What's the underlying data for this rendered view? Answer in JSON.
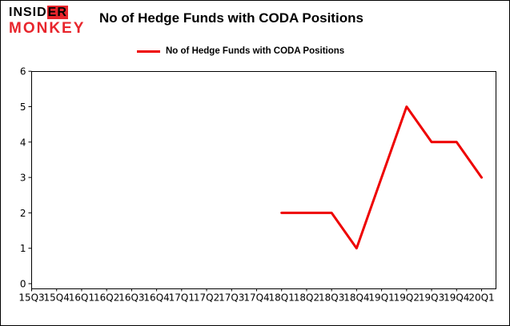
{
  "logo": {
    "line1_black": "INSID",
    "line1_red": "ER",
    "line2": "MONKEY"
  },
  "header": {
    "title": "No of Hedge Funds with CODA Positions"
  },
  "legend": {
    "label": "No of Hedge Funds with CODA Positions"
  },
  "colors": {
    "line": "#ee0000",
    "logo_red": "#e8252c",
    "axis": "#000000",
    "background": "#ffffff"
  },
  "chart_data": {
    "type": "line",
    "title": "No of Hedge Funds with CODA Positions",
    "xlabel": "",
    "ylabel": "",
    "ylim": [
      0,
      6
    ],
    "yticks": [
      0,
      1,
      2,
      3,
      4,
      5,
      6
    ],
    "grid": false,
    "legend_position": "top-left",
    "categories": [
      "15Q3",
      "15Q4",
      "16Q1",
      "16Q2",
      "16Q3",
      "16Q4",
      "17Q1",
      "17Q2",
      "17Q3",
      "17Q4",
      "18Q1",
      "18Q2",
      "18Q3",
      "18Q4",
      "19Q1",
      "19Q2",
      "19Q3",
      "19Q4",
      "20Q1"
    ],
    "series": [
      {
        "name": "No of Hedge Funds with CODA Positions",
        "color": "#ee0000",
        "values": [
          null,
          null,
          null,
          null,
          null,
          null,
          null,
          null,
          null,
          null,
          2,
          2,
          2,
          1,
          3,
          5,
          4,
          4,
          3
        ]
      }
    ]
  }
}
